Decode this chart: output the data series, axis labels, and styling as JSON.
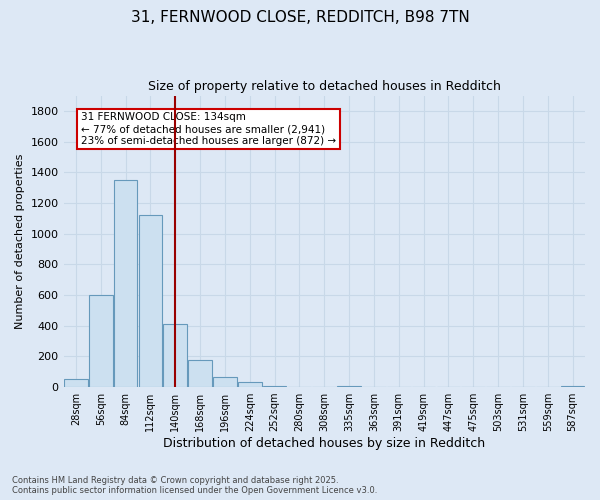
{
  "title_line1": "31, FERNWOOD CLOSE, REDDITCH, B98 7TN",
  "title_line2": "Size of property relative to detached houses in Redditch",
  "xlabel": "Distribution of detached houses by size in Redditch",
  "ylabel": "Number of detached properties",
  "footnote": "Contains HM Land Registry data © Crown copyright and database right 2025.\nContains public sector information licensed under the Open Government Licence v3.0.",
  "bin_labels": [
    "28sqm",
    "56sqm",
    "84sqm",
    "112sqm",
    "140sqm",
    "168sqm",
    "196sqm",
    "224sqm",
    "252sqm",
    "280sqm",
    "308sqm",
    "335sqm",
    "363sqm",
    "391sqm",
    "419sqm",
    "447sqm",
    "475sqm",
    "503sqm",
    "531sqm",
    "559sqm",
    "587sqm"
  ],
  "bar_values": [
    55,
    600,
    1350,
    1120,
    410,
    175,
    65,
    35,
    10,
    0,
    0,
    10,
    0,
    0,
    0,
    0,
    0,
    0,
    0,
    0,
    5
  ],
  "bar_color": "#cce0f0",
  "bar_edge_color": "#6699bb",
  "background_color": "#dde8f5",
  "grid_color": "#c8d8e8",
  "vline_x": 4,
  "vline_color": "#990000",
  "annotation_text": "31 FERNWOOD CLOSE: 134sqm\n← 77% of detached houses are smaller (2,941)\n23% of semi-detached houses are larger (872) →",
  "annotation_box_color": "#ffffff",
  "annotation_box_edge": "#cc0000",
  "ylim": [
    0,
    1900
  ],
  "yticks": [
    0,
    200,
    400,
    600,
    800,
    1000,
    1200,
    1400,
    1600,
    1800
  ],
  "bin_width": 28,
  "fig_width": 6.0,
  "fig_height": 5.0,
  "fig_dpi": 100
}
